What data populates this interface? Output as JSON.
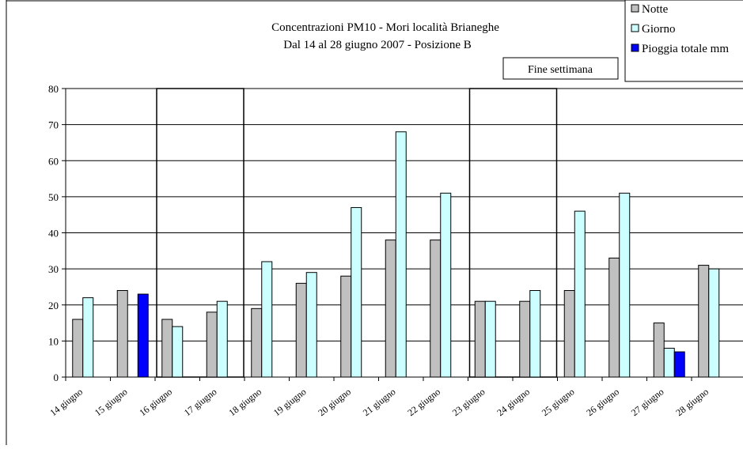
{
  "chart_data": {
    "type": "bar",
    "title": "Concentrazioni PM10 - Mori località Brianeghe",
    "subtitle": "Dal 14 al 28 giugno 2007 - Posizione B",
    "annotation": "Fine settimana",
    "weekend_boxes": [
      [
        "16 giugno",
        "17 giugno"
      ],
      [
        "23 giugno",
        "24 giugno"
      ]
    ],
    "weekend_box_value": 80,
    "categories": [
      "14 giugno",
      "15 giugno",
      "16 giugno",
      "17 giugno",
      "18 giugno",
      "19 giugno",
      "20 giugno",
      "21 giugno",
      "22 giugno",
      "23 giugno",
      "24 giugno",
      "25 giugno",
      "26 giugno",
      "27 giugno",
      "28 giugno"
    ],
    "series": [
      {
        "name": "Notte",
        "color": "#c0c0c0",
        "values": [
          16,
          24,
          16,
          18,
          19,
          26,
          28,
          38,
          38,
          21,
          21,
          24,
          33,
          15,
          31
        ]
      },
      {
        "name": "Giorno",
        "color": "#ccffff",
        "values": [
          22,
          null,
          14,
          21,
          32,
          29,
          47,
          68,
          51,
          21,
          24,
          46,
          51,
          8,
          30
        ]
      },
      {
        "name": "Pioggia totale mm",
        "color": "#0000ff",
        "values": [
          null,
          23,
          null,
          null,
          null,
          null,
          null,
          null,
          null,
          null,
          null,
          null,
          null,
          7,
          null
        ]
      }
    ],
    "ylim": [
      0,
      80
    ],
    "yticks": [
      0,
      10,
      20,
      30,
      40,
      50,
      60,
      70,
      80
    ],
    "grid": true,
    "legend_position": "top-right"
  }
}
